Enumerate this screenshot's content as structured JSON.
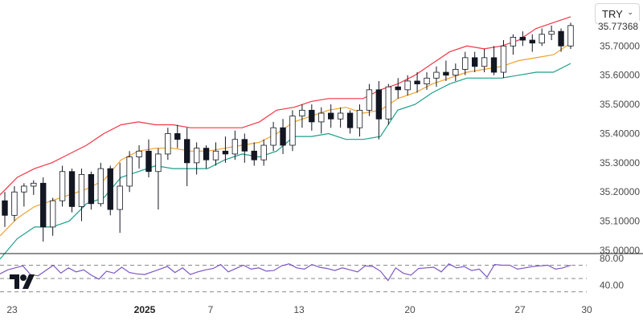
{
  "symbol_selector": {
    "value": "TRY",
    "chevron_icon": "chevron-down-icon"
  },
  "last_price_label": "35.77368",
  "logo_icon": "tradingview-logo-icon",
  "colors": {
    "candle": "#131722",
    "upper_band": "#f23645",
    "middle_band": "#f2a12c",
    "lower_band": "#1f9e89",
    "rsi": "#7e57c2",
    "rsi_guides": "#7a7a7a"
  },
  "x_axis_labels": [
    {
      "text": "23",
      "bold": false
    },
    {
      "text": "2025",
      "bold": true
    },
    {
      "text": "7",
      "bold": false
    },
    {
      "text": "13",
      "bold": false
    },
    {
      "text": "20",
      "bold": false
    },
    {
      "text": "27",
      "bold": false
    },
    {
      "text": "30",
      "bold": false
    }
  ],
  "chart_data": [
    {
      "type": "candlestick",
      "title": "",
      "x_ticks": [
        "23",
        "2025",
        "7",
        "13",
        "20",
        "27",
        "30"
      ],
      "y_ticks": [
        "35.00000",
        "35.10000",
        "35.20000",
        "35.30000",
        "35.40000",
        "35.50000",
        "35.60000",
        "35.70000"
      ],
      "ylim": [
        35.0,
        35.83
      ],
      "grid": false,
      "overlay_series": [
        {
          "indicator": "bollinger-upper",
          "values": [
            35.19,
            35.25,
            35.28,
            35.3,
            35.33,
            35.36,
            35.4,
            35.43,
            35.44,
            35.43,
            35.43,
            35.42,
            35.42,
            35.42,
            35.42,
            35.44,
            35.48,
            35.49,
            35.51,
            35.52,
            35.52,
            35.52,
            35.55,
            35.57,
            35.6,
            35.64,
            35.68,
            35.7,
            35.69,
            35.7,
            35.72,
            35.76,
            35.78,
            35.8
          ]
        },
        {
          "indicator": "bollinger-middle",
          "values": [
            35.05,
            35.11,
            35.15,
            35.17,
            35.19,
            35.21,
            35.24,
            35.31,
            35.34,
            35.35,
            35.35,
            35.34,
            35.34,
            35.35,
            35.36,
            35.37,
            35.4,
            35.44,
            35.46,
            35.48,
            35.49,
            35.47,
            35.48,
            35.52,
            35.54,
            35.57,
            35.59,
            35.61,
            35.62,
            35.63,
            35.65,
            35.66,
            35.67,
            35.71
          ]
        },
        {
          "indicator": "bollinger-lower",
          "values": [
            34.97,
            35.04,
            35.08,
            35.08,
            35.1,
            35.16,
            35.18,
            35.25,
            35.27,
            35.29,
            35.28,
            35.28,
            35.28,
            35.31,
            35.33,
            35.32,
            35.34,
            35.39,
            35.39,
            35.4,
            35.38,
            35.38,
            35.39,
            35.48,
            35.5,
            35.54,
            35.57,
            35.59,
            35.59,
            35.59,
            35.6,
            35.61,
            35.61,
            35.64
          ]
        }
      ],
      "candles_ohlc": [
        [
          35.17,
          35.2,
          35.08,
          35.12
        ],
        [
          35.12,
          35.22,
          35.1,
          35.2
        ],
        [
          35.2,
          35.23,
          35.15,
          35.22
        ],
        [
          35.22,
          35.24,
          35.19,
          35.23
        ],
        [
          35.23,
          35.25,
          35.03,
          35.08
        ],
        [
          35.08,
          35.18,
          35.05,
          35.17
        ],
        [
          35.17,
          35.29,
          35.15,
          35.27
        ],
        [
          35.27,
          35.28,
          35.13,
          35.15
        ],
        [
          35.15,
          35.28,
          35.1,
          35.26
        ],
        [
          35.26,
          35.27,
          35.14,
          35.16
        ],
        [
          35.16,
          35.3,
          35.15,
          35.28
        ],
        [
          35.28,
          35.29,
          35.12,
          35.14
        ],
        [
          35.14,
          35.3,
          35.06,
          35.22
        ],
        [
          35.22,
          35.34,
          35.2,
          35.32
        ],
        [
          35.32,
          35.36,
          35.28,
          35.34
        ],
        [
          35.34,
          35.38,
          35.25,
          35.27
        ],
        [
          35.27,
          35.35,
          35.14,
          35.33
        ],
        [
          35.33,
          35.42,
          35.31,
          35.4
        ],
        [
          35.4,
          35.43,
          35.35,
          35.38
        ],
        [
          35.38,
          35.42,
          35.22,
          35.3
        ],
        [
          35.3,
          35.37,
          35.26,
          35.35
        ],
        [
          35.35,
          35.36,
          35.28,
          35.31
        ],
        [
          35.31,
          35.37,
          35.29,
          35.34
        ],
        [
          35.34,
          35.39,
          35.3,
          35.33
        ],
        [
          35.33,
          35.41,
          35.31,
          35.38
        ],
        [
          35.38,
          35.4,
          35.3,
          35.34
        ],
        [
          35.34,
          35.37,
          35.29,
          35.31
        ],
        [
          35.31,
          35.38,
          35.29,
          35.36
        ],
        [
          35.36,
          35.44,
          35.34,
          35.42
        ],
        [
          35.42,
          35.45,
          35.33,
          35.36
        ],
        [
          35.36,
          35.48,
          35.34,
          35.46
        ],
        [
          35.46,
          35.5,
          35.42,
          35.48
        ],
        [
          35.48,
          35.5,
          35.41,
          35.44
        ],
        [
          35.44,
          35.49,
          35.4,
          35.47
        ],
        [
          35.47,
          35.5,
          35.42,
          35.45
        ],
        [
          35.45,
          35.49,
          35.42,
          35.47
        ],
        [
          35.47,
          35.48,
          35.4,
          35.42
        ],
        [
          35.42,
          35.5,
          35.39,
          35.48
        ],
        [
          35.48,
          35.57,
          35.46,
          35.55
        ],
        [
          35.55,
          35.58,
          35.38,
          35.45
        ],
        [
          35.45,
          35.57,
          35.43,
          35.56
        ],
        [
          35.56,
          35.59,
          35.52,
          35.55
        ],
        [
          35.55,
          35.6,
          35.53,
          35.58
        ],
        [
          35.58,
          35.61,
          35.54,
          35.57
        ],
        [
          35.57,
          35.61,
          35.55,
          35.59
        ],
        [
          35.59,
          35.63,
          35.56,
          35.61
        ],
        [
          35.61,
          35.65,
          35.58,
          35.6
        ],
        [
          35.6,
          35.64,
          35.58,
          35.62
        ],
        [
          35.62,
          35.68,
          35.6,
          35.66
        ],
        [
          35.66,
          35.68,
          35.61,
          35.63
        ],
        [
          35.63,
          35.69,
          35.61,
          35.66
        ],
        [
          35.66,
          35.7,
          35.6,
          35.61
        ],
        [
          35.61,
          35.72,
          35.59,
          35.7
        ],
        [
          35.7,
          35.74,
          35.67,
          35.73
        ],
        [
          35.73,
          35.75,
          35.7,
          35.72
        ],
        [
          35.72,
          35.74,
          35.68,
          35.71
        ],
        [
          35.71,
          35.76,
          35.7,
          35.74
        ],
        [
          35.74,
          35.77,
          35.72,
          35.75
        ],
        [
          35.75,
          35.76,
          35.68,
          35.7
        ],
        [
          35.7,
          35.78,
          35.69,
          35.77
        ]
      ]
    },
    {
      "type": "line",
      "indicator": "rsi",
      "y_ticks": [
        "80.00",
        "40.00"
      ],
      "guide_levels": [
        70,
        50,
        30
      ],
      "ylim": [
        20,
        85
      ],
      "values": [
        57,
        63,
        66,
        69,
        56,
        54,
        62,
        70,
        58,
        66,
        60,
        63,
        55,
        49,
        61,
        58,
        67,
        59,
        57,
        56,
        60,
        64,
        68,
        59,
        66,
        56,
        60,
        63,
        65,
        71,
        60,
        65,
        70,
        64,
        66,
        61,
        62,
        69,
        72,
        66,
        64,
        71,
        67,
        65,
        62,
        66,
        63,
        60,
        69,
        68,
        61,
        47,
        66,
        58,
        55,
        65,
        66,
        67,
        60,
        72,
        66,
        68,
        62,
        64,
        52,
        71,
        70,
        70,
        64,
        66,
        68,
        69,
        70,
        64,
        66,
        70
      ]
    }
  ]
}
